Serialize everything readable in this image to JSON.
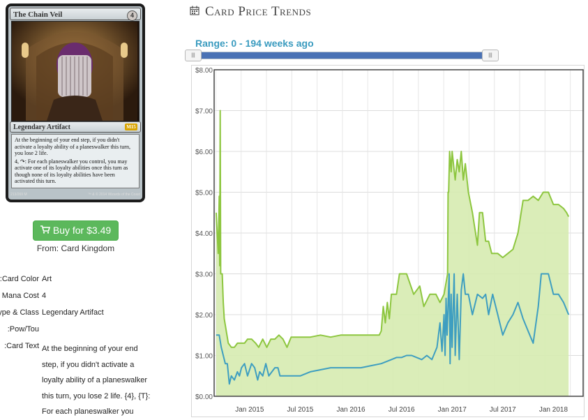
{
  "card": {
    "name": "The Chain Veil",
    "mana_cost": "4",
    "type_line": "Legendary Artifact",
    "set_symbol": "M15",
    "rules_text": [
      "At the beginning of your end step, if you didn't activate a loyalty ability of a planeswalker this turn, you lose 2 life.",
      "4, ↷: For each planeswalker you control, you may activate one of its loyalty abilities once this turn as though none of its loyalty abilities have been activated this turn."
    ],
    "collector": "213/269 M",
    "copyright": "™ & © 2014 Wizards of the Coast"
  },
  "buy": {
    "label": "Buy for $3.49",
    "icon": "shopping-cart-icon",
    "color": "#5cb85c"
  },
  "vendor": "From: Card Kingdom",
  "attributes": [
    {
      "label": "Card Color:",
      "value": "Art"
    },
    {
      "label": "Mana Cost",
      "value": "4"
    },
    {
      "label": "Type & Class:",
      "value": "Legendary Artifact"
    },
    {
      "label": "Pow/Tou:",
      "value": ""
    },
    {
      "label": "Card Text:",
      "value": ""
    }
  ],
  "card_text_lines": [
    "At the beginning of your end",
    "step, if you didn't activate a",
    "loyalty ability of a planeswalker",
    "this turn, you lose 2 life. {4}, {T}:",
    "For each planeswalker you"
  ],
  "trends": {
    "title": "Card Price Trends",
    "icon": "calendar-icon",
    "range_label": "Range: 0 - 194 weeks ago",
    "slider": {
      "min_weeks": 0,
      "max_weeks": 194,
      "handle_left": "|||",
      "handle_right": "|||"
    }
  },
  "chart_data": {
    "type": "area",
    "title": "",
    "xlabel": "",
    "ylabel": "",
    "ylim": [
      0,
      8
    ],
    "grid": true,
    "y_ticks": [
      "$0.00",
      "$1.00",
      "$2.00",
      "$3.00",
      "$4.00",
      "$5.00",
      "$6.00",
      "$7.00",
      "$8.00"
    ],
    "x_ticks": [
      {
        "label": "Jan 2015",
        "x": 2015.0
      },
      {
        "label": "Jul 2015",
        "x": 2015.5
      },
      {
        "label": "Jan 2016",
        "x": 2016.0
      },
      {
        "label": "Jul 2016",
        "x": 2016.5
      },
      {
        "label": "Jan 2017",
        "x": 2017.0
      },
      {
        "label": "Jul 2017",
        "x": 2017.5
      },
      {
        "label": "Jan 2018",
        "x": 2018.0
      }
    ],
    "xlim": [
      2014.65,
      2018.3
    ],
    "colors": {
      "retail": "#8dc63f",
      "retail_fill": "#d6ebb0",
      "buylist": "#3e9ec0"
    },
    "series": [
      {
        "id": "retail",
        "points": [
          [
            2014.67,
            4.5
          ],
          [
            2014.69,
            3.5
          ],
          [
            2014.7,
            4.9
          ],
          [
            2014.705,
            3.2
          ],
          [
            2014.71,
            7.0
          ],
          [
            2014.715,
            3.0
          ],
          [
            2014.73,
            3.0
          ],
          [
            2014.74,
            2.3
          ],
          [
            2014.75,
            1.9
          ],
          [
            2014.77,
            1.6
          ],
          [
            2014.79,
            1.3
          ],
          [
            2014.82,
            1.2
          ],
          [
            2014.85,
            1.2
          ],
          [
            2014.88,
            1.3
          ],
          [
            2014.92,
            1.3
          ],
          [
            2014.95,
            1.3
          ],
          [
            2014.98,
            1.4
          ],
          [
            2015.02,
            1.4
          ],
          [
            2015.06,
            1.3
          ],
          [
            2015.09,
            1.2
          ],
          [
            2015.13,
            1.4
          ],
          [
            2015.17,
            1.2
          ],
          [
            2015.21,
            1.4
          ],
          [
            2015.25,
            1.4
          ],
          [
            2015.29,
            1.5
          ],
          [
            2015.33,
            1.4
          ],
          [
            2015.37,
            1.2
          ],
          [
            2015.41,
            1.45
          ],
          [
            2015.5,
            1.45
          ],
          [
            2015.6,
            1.45
          ],
          [
            2015.7,
            1.5
          ],
          [
            2015.8,
            1.45
          ],
          [
            2015.9,
            1.5
          ],
          [
            2016.0,
            1.5
          ],
          [
            2016.1,
            1.5
          ],
          [
            2016.2,
            1.5
          ],
          [
            2016.28,
            1.5
          ],
          [
            2016.3,
            1.6
          ],
          [
            2016.32,
            2.2
          ],
          [
            2016.34,
            1.8
          ],
          [
            2016.36,
            2.3
          ],
          [
            2016.38,
            1.9
          ],
          [
            2016.4,
            2.5
          ],
          [
            2016.45,
            2.5
          ],
          [
            2016.48,
            3.0
          ],
          [
            2016.55,
            3.0
          ],
          [
            2016.62,
            2.5
          ],
          [
            2016.68,
            2.7
          ],
          [
            2016.72,
            2.2
          ],
          [
            2016.78,
            2.5
          ],
          [
            2016.84,
            2.5
          ],
          [
            2016.88,
            2.3
          ],
          [
            2016.92,
            2.5
          ],
          [
            2016.955,
            3.0
          ],
          [
            2016.96,
            5.0
          ],
          [
            2016.965,
            5.0
          ],
          [
            2016.975,
            6.0
          ],
          [
            2016.99,
            5.5
          ],
          [
            2017.0,
            6.0
          ],
          [
            2017.03,
            5.3
          ],
          [
            2017.05,
            5.8
          ],
          [
            2017.07,
            5.5
          ],
          [
            2017.09,
            6.0
          ],
          [
            2017.11,
            5.3
          ],
          [
            2017.13,
            5.7
          ],
          [
            2017.16,
            5.0
          ],
          [
            2017.2,
            4.5
          ],
          [
            2017.25,
            3.7
          ],
          [
            2017.27,
            4.5
          ],
          [
            2017.3,
            4.5
          ],
          [
            2017.33,
            3.8
          ],
          [
            2017.36,
            3.8
          ],
          [
            2017.39,
            3.5
          ],
          [
            2017.45,
            3.5
          ],
          [
            2017.5,
            3.4
          ],
          [
            2017.55,
            3.5
          ],
          [
            2017.6,
            3.6
          ],
          [
            2017.65,
            4.0
          ],
          [
            2017.7,
            4.8
          ],
          [
            2017.75,
            4.8
          ],
          [
            2017.8,
            4.9
          ],
          [
            2017.85,
            4.8
          ],
          [
            2017.9,
            5.0
          ],
          [
            2017.95,
            5.0
          ],
          [
            2018.0,
            4.7
          ],
          [
            2018.05,
            4.7
          ],
          [
            2018.1,
            4.6
          ],
          [
            2018.13,
            4.5
          ],
          [
            2018.15,
            4.4
          ]
        ]
      },
      {
        "id": "buylist",
        "points": [
          [
            2014.67,
            1.5
          ],
          [
            2014.7,
            1.5
          ],
          [
            2014.72,
            1.2
          ],
          [
            2014.74,
            1.0
          ],
          [
            2014.76,
            0.8
          ],
          [
            2014.78,
            0.8
          ],
          [
            2014.8,
            0.3
          ],
          [
            2014.82,
            0.5
          ],
          [
            2014.85,
            0.4
          ],
          [
            2014.88,
            0.6
          ],
          [
            2014.9,
            0.5
          ],
          [
            2014.92,
            0.7
          ],
          [
            2014.95,
            0.8
          ],
          [
            2014.98,
            0.5
          ],
          [
            2015.02,
            0.8
          ],
          [
            2015.05,
            0.7
          ],
          [
            2015.08,
            0.4
          ],
          [
            2015.1,
            0.6
          ],
          [
            2015.13,
            0.5
          ],
          [
            2015.16,
            0.8
          ],
          [
            2015.19,
            0.5
          ],
          [
            2015.22,
            0.6
          ],
          [
            2015.25,
            0.7
          ],
          [
            2015.28,
            0.7
          ],
          [
            2015.3,
            0.5
          ],
          [
            2015.35,
            0.5
          ],
          [
            2015.45,
            0.5
          ],
          [
            2015.5,
            0.5
          ],
          [
            2015.6,
            0.6
          ],
          [
            2015.7,
            0.65
          ],
          [
            2015.8,
            0.7
          ],
          [
            2015.9,
            0.7
          ],
          [
            2016.0,
            0.7
          ],
          [
            2016.1,
            0.7
          ],
          [
            2016.2,
            0.75
          ],
          [
            2016.3,
            0.8
          ],
          [
            2016.35,
            0.85
          ],
          [
            2016.4,
            0.9
          ],
          [
            2016.45,
            0.95
          ],
          [
            2016.5,
            0.95
          ],
          [
            2016.55,
            1.0
          ],
          [
            2016.6,
            1.0
          ],
          [
            2016.65,
            0.95
          ],
          [
            2016.7,
            0.9
          ],
          [
            2016.75,
            1.0
          ],
          [
            2016.8,
            0.9
          ],
          [
            2016.85,
            1.2
          ],
          [
            2016.88,
            1.8
          ],
          [
            2016.9,
            1.1
          ],
          [
            2016.92,
            2.0
          ],
          [
            2016.93,
            1.0
          ],
          [
            2016.94,
            2.4
          ],
          [
            2016.95,
            1.5
          ],
          [
            2016.97,
            3.0
          ],
          [
            2016.98,
            0.8
          ],
          [
            2016.99,
            2.5
          ],
          [
            2017.0,
            1.2
          ],
          [
            2017.02,
            3.0
          ],
          [
            2017.03,
            1.0
          ],
          [
            2017.05,
            2.5
          ],
          [
            2017.07,
            0.9
          ],
          [
            2017.09,
            2.6
          ],
          [
            2017.11,
            3.0
          ],
          [
            2017.13,
            2.5
          ],
          [
            2017.16,
            2.5
          ],
          [
            2017.2,
            2.0
          ],
          [
            2017.25,
            2.5
          ],
          [
            2017.3,
            2.4
          ],
          [
            2017.33,
            2.5
          ],
          [
            2017.36,
            2.0
          ],
          [
            2017.4,
            2.5
          ],
          [
            2017.45,
            2.0
          ],
          [
            2017.5,
            1.5
          ],
          [
            2017.55,
            1.8
          ],
          [
            2017.6,
            2.0
          ],
          [
            2017.65,
            2.3
          ],
          [
            2017.7,
            1.9
          ],
          [
            2017.75,
            1.6
          ],
          [
            2017.8,
            1.3
          ],
          [
            2017.85,
            2.2
          ],
          [
            2017.88,
            3.0
          ],
          [
            2017.95,
            3.0
          ],
          [
            2018.0,
            2.5
          ],
          [
            2018.05,
            2.5
          ],
          [
            2018.1,
            2.3
          ],
          [
            2018.15,
            2.0
          ]
        ]
      }
    ]
  }
}
